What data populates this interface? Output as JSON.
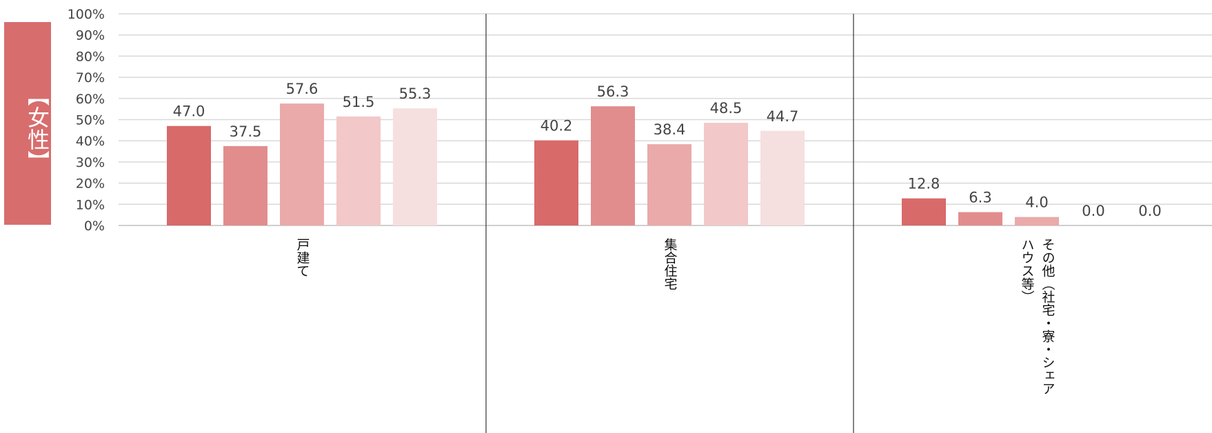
{
  "badge": {
    "label": "【女性】",
    "color": "#d86d6d"
  },
  "chart_data": {
    "type": "bar",
    "title": "",
    "xlabel": "",
    "ylabel": "",
    "ylim": [
      0,
      100
    ],
    "yticks": [
      "0%",
      "10%",
      "20%",
      "30%",
      "40%",
      "50%",
      "60%",
      "70%",
      "80%",
      "90%",
      "100%"
    ],
    "grid": true,
    "categories": [
      "戸建て",
      "集合住宅",
      "その他（社宅・寮・シェアハウス等）"
    ],
    "category_label_lines": [
      [
        "戸建て"
      ],
      [
        "集合住宅"
      ],
      [
        "その他（社宅・寮・シェア",
        "ハウス等）"
      ]
    ],
    "series_colors": [
      "#d86a6a",
      "#e28d8d",
      "#eaaaaa",
      "#f2c8c8",
      "#f6dfdf"
    ],
    "series": [
      {
        "values": [
          47.0,
          40.2,
          12.8
        ],
        "labels": [
          "47.0",
          "40.2",
          "12.8"
        ]
      },
      {
        "values": [
          37.5,
          56.3,
          6.3
        ],
        "labels": [
          "37.5",
          "56.3",
          "6.3"
        ]
      },
      {
        "values": [
          57.6,
          38.4,
          4.0
        ],
        "labels": [
          "57.6",
          "38.4",
          "4.0"
        ]
      },
      {
        "values": [
          51.5,
          48.5,
          0.0
        ],
        "labels": [
          "51.5",
          "48.5",
          "0.0"
        ]
      },
      {
        "values": [
          55.3,
          44.7,
          0.0
        ],
        "labels": [
          "55.3",
          "44.7",
          "0.0"
        ]
      }
    ]
  }
}
